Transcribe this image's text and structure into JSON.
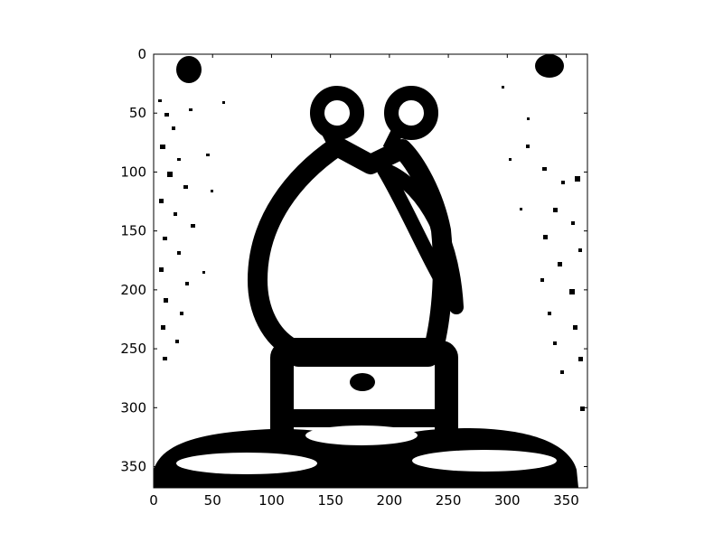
{
  "chart_data": {
    "type": "heatmap",
    "colormap": "binary (black and white thresholded image)",
    "title": "",
    "xlabel": "",
    "ylabel": "",
    "xlim": [
      0,
      368
    ],
    "ylim": [
      368,
      0
    ],
    "image_shape": [
      368,
      368
    ],
    "grid": false,
    "legend": "none",
    "x_ticks": [
      0,
      50,
      100,
      150,
      200,
      250,
      300,
      350
    ],
    "y_ticks": [
      0,
      50,
      100,
      150,
      200,
      250,
      300,
      350
    ],
    "x_tick_labels": [
      "0",
      "50",
      "100",
      "150",
      "200",
      "250",
      "300",
      "350"
    ],
    "y_tick_labels": [
      "0",
      "50",
      "100",
      "150",
      "200",
      "250",
      "300",
      "350"
    ],
    "foreground_color": "#000000",
    "background_color": "#ffffff"
  }
}
